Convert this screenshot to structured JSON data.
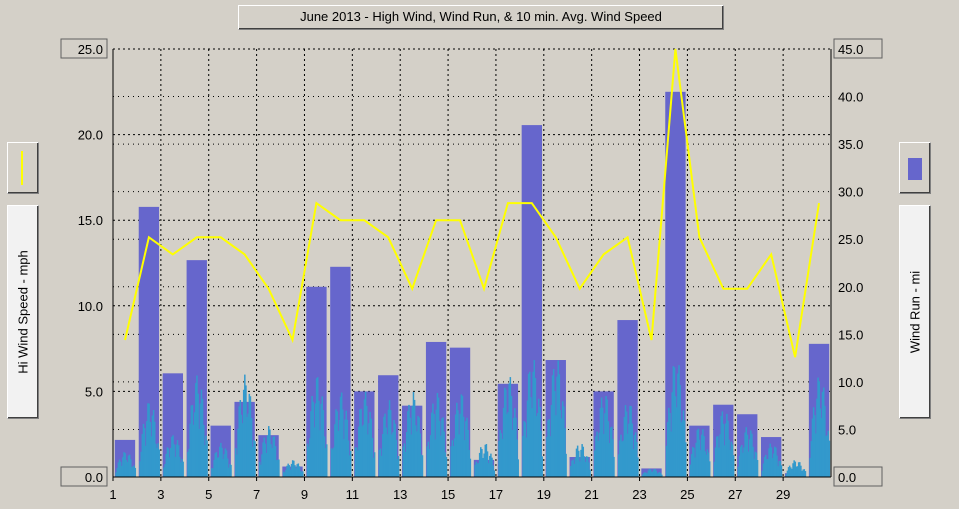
{
  "chart_data": {
    "type": "bar",
    "title": "June 2013 - High Wind, Wind Run, & 10 min. Avg. Wind Speed",
    "ylabel_left": "Hi Wind Speed - mph",
    "ylabel_right": "Wind Run - mi",
    "xlim": [
      1,
      31
    ],
    "ylim_left": [
      0,
      25
    ],
    "ylim_right": [
      0,
      45
    ],
    "x_ticks": [
      "1",
      "3",
      "5",
      "7",
      "9",
      "11",
      "13",
      "15",
      "17",
      "19",
      "21",
      "23",
      "25",
      "27",
      "29"
    ],
    "y_ticks_left": [
      "0.0",
      "5.0",
      "10.0",
      "15.0",
      "20.0",
      "25.0"
    ],
    "y_ticks_right": [
      "0.0",
      "5.0",
      "10.0",
      "15.0",
      "20.0",
      "25.0",
      "30.0",
      "35.0",
      "40.0",
      "45.0"
    ],
    "grid": true,
    "colors": {
      "wind_run": "#6666cc",
      "avg_speed": "#3399cc",
      "high_wind": "#ffff00",
      "plot_bg": "#d4d0c8"
    },
    "series": [
      {
        "name": "Wind Run - mi",
        "type": "bar",
        "days": [
          1,
          2,
          3,
          4,
          5,
          6,
          7,
          8,
          9,
          10,
          11,
          12,
          13,
          14,
          15,
          16,
          17,
          18,
          19,
          20,
          21,
          22,
          23,
          24,
          25,
          26,
          27,
          28,
          29,
          30
        ],
        "values": [
          3.9,
          28.4,
          10.9,
          22.8,
          5.4,
          7.9,
          4.4,
          1.1,
          20.0,
          22.1,
          9.0,
          10.7,
          7.5,
          14.2,
          13.6,
          1.8,
          9.8,
          37.0,
          12.3,
          2.1,
          9.0,
          16.5,
          0.9,
          40.5,
          5.4,
          7.6,
          6.6,
          4.2,
          0.4,
          14.0
        ]
      },
      {
        "name": "Hi Wind Speed - mph",
        "type": "line",
        "days": [
          1,
          2,
          3,
          4,
          5,
          6,
          7,
          8,
          9,
          10,
          11,
          12,
          13,
          14,
          15,
          16,
          17,
          18,
          19,
          20,
          21,
          22,
          23,
          24,
          25,
          26,
          27,
          28,
          29,
          30
        ],
        "values": [
          8,
          14,
          13,
          14,
          14,
          13,
          11,
          8,
          16,
          15,
          15,
          14,
          11,
          15,
          15,
          11,
          16,
          16,
          14,
          11,
          13,
          14,
          8,
          25,
          14,
          11,
          11,
          13,
          7,
          16
        ]
      },
      {
        "name": "10 min. Avg. Wind Speed",
        "type": "bar",
        "days": [
          1,
          2,
          3,
          4,
          5,
          6,
          7,
          8,
          9,
          10,
          11,
          12,
          13,
          14,
          15,
          16,
          17,
          18,
          19,
          20,
          21,
          22,
          23,
          24,
          25,
          26,
          27,
          28,
          29,
          30
        ],
        "daily_max": [
          1.5,
          4.5,
          2.5,
          6.0,
          2.0,
          6.0,
          3.0,
          1.0,
          6.0,
          5.0,
          5.0,
          4.5,
          5.0,
          5.0,
          5.0,
          2.0,
          6.0,
          7.0,
          7.0,
          2.0,
          5.0,
          4.5,
          0.5,
          7.0,
          3.0,
          4.0,
          3.0,
          2.0,
          1.0,
          6.0
        ]
      }
    ]
  }
}
